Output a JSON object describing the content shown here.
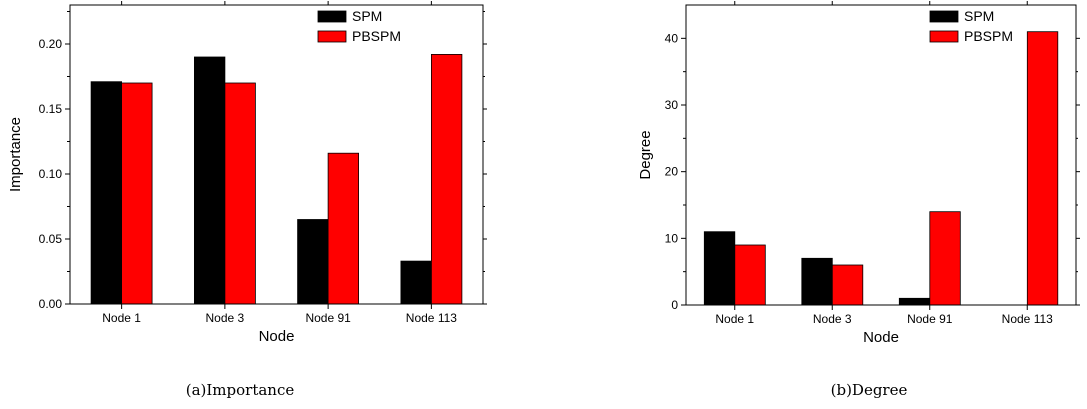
{
  "chart_data": [
    {
      "type": "bar",
      "title": "",
      "caption": "(a)Importance",
      "xlabel": "Node",
      "ylabel": "Importance",
      "categories": [
        "Node 1",
        "Node 3",
        "Node 91",
        "Node 113"
      ],
      "ylim": [
        0,
        0.23
      ],
      "yticks": [
        "0.00",
        "0.05",
        "0.10",
        "0.15",
        "0.20"
      ],
      "series": [
        {
          "name": "SPM",
          "color": "#000000",
          "values": [
            0.171,
            0.19,
            0.065,
            0.033
          ]
        },
        {
          "name": "PBSPM",
          "color": "#ff0000",
          "values": [
            0.17,
            0.17,
            0.116,
            0.192
          ]
        }
      ],
      "legend": "top-right",
      "grid": false
    },
    {
      "type": "bar",
      "title": "",
      "caption": "(b)Degree",
      "xlabel": "Node",
      "ylabel": "Degree",
      "categories": [
        "Node 1",
        "Node 3",
        "Node 91",
        "Node 113"
      ],
      "ylim": [
        0,
        45
      ],
      "yticks": [
        "0",
        "10",
        "20",
        "30",
        "40"
      ],
      "series": [
        {
          "name": "SPM",
          "color": "#000000",
          "values": [
            11,
            7,
            1,
            0
          ]
        },
        {
          "name": "PBSPM",
          "color": "#ff0000",
          "values": [
            9,
            6,
            14,
            41
          ]
        }
      ],
      "legend": "top-right",
      "grid": false
    }
  ]
}
